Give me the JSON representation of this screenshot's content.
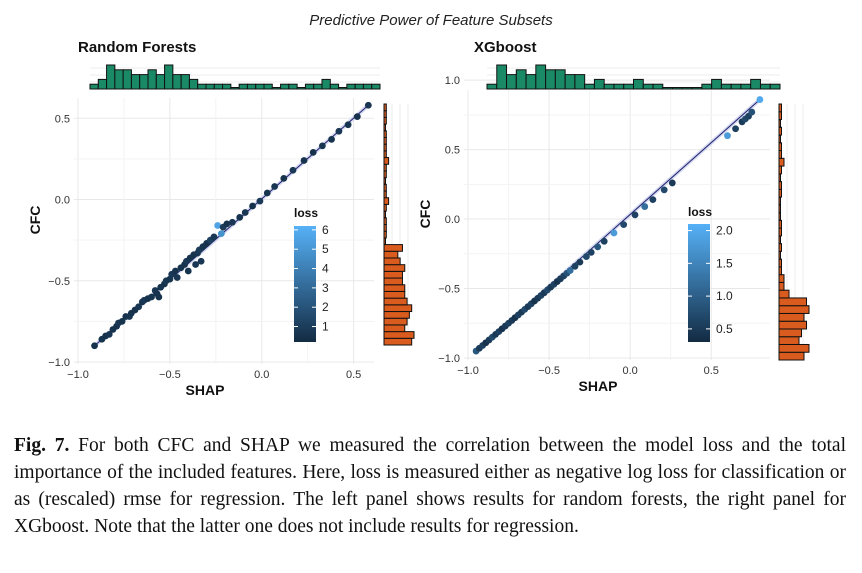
{
  "figure": {
    "title": "Predictive Power of Feature Subsets",
    "colors": {
      "hist_top": "#1a8a66",
      "hist_right": "#d95b1e",
      "point_dark": "#132b43",
      "point_light": "#56b1f7",
      "line": "#1f1f6e"
    }
  },
  "chart_data": [
    {
      "type": "scatter",
      "title": "Random Forests",
      "xlabel": "SHAP",
      "ylabel": "CFC",
      "xlim": [
        -1.0,
        0.6
      ],
      "ylim": [
        -1.0,
        0.6
      ],
      "xticks": [
        "−1.0",
        "−0.5",
        "0.0",
        "0.5"
      ],
      "yticks": [
        "−1.0",
        "−0.5",
        "0.0",
        "0.5"
      ],
      "xtick_values": [
        -1.0,
        -0.5,
        0.0,
        0.5
      ],
      "ytick_values": [
        -1.0,
        -0.5,
        0.0,
        0.5
      ],
      "legend": {
        "title": "loss",
        "ticks": [
          "1",
          "2",
          "3",
          "4",
          "5",
          "6"
        ],
        "tick_values": [
          1,
          2,
          3,
          4,
          5,
          6
        ],
        "range": [
          0.2,
          6.2
        ]
      },
      "points": [
        {
          "x": -0.91,
          "y": -0.9,
          "loss": 0.5
        },
        {
          "x": -0.87,
          "y": -0.86,
          "loss": 0.6
        },
        {
          "x": -0.85,
          "y": -0.84,
          "loss": 0.5
        },
        {
          "x": -0.83,
          "y": -0.83,
          "loss": 0.7
        },
        {
          "x": -0.81,
          "y": -0.8,
          "loss": 0.6
        },
        {
          "x": -0.79,
          "y": -0.78,
          "loss": 0.5
        },
        {
          "x": -0.78,
          "y": -0.76,
          "loss": 0.8
        },
        {
          "x": -0.76,
          "y": -0.75,
          "loss": 0.6
        },
        {
          "x": -0.74,
          "y": -0.72,
          "loss": 0.5
        },
        {
          "x": -0.72,
          "y": -0.72,
          "loss": 0.7
        },
        {
          "x": -0.71,
          "y": -0.7,
          "loss": 0.6
        },
        {
          "x": -0.69,
          "y": -0.68,
          "loss": 0.5
        },
        {
          "x": -0.67,
          "y": -0.66,
          "loss": 0.7
        },
        {
          "x": -0.65,
          "y": -0.63,
          "loss": 0.6
        },
        {
          "x": -0.64,
          "y": -0.62,
          "loss": 0.8
        },
        {
          "x": -0.62,
          "y": -0.61,
          "loss": 0.5
        },
        {
          "x": -0.6,
          "y": -0.6,
          "loss": 0.6
        },
        {
          "x": -0.58,
          "y": -0.56,
          "loss": 0.7
        },
        {
          "x": -0.57,
          "y": -0.58,
          "loss": 0.5
        },
        {
          "x": -0.55,
          "y": -0.54,
          "loss": 0.6
        },
        {
          "x": -0.53,
          "y": -0.52,
          "loss": 0.5
        },
        {
          "x": -0.52,
          "y": -0.5,
          "loss": 0.7
        },
        {
          "x": -0.5,
          "y": -0.49,
          "loss": 0.6
        },
        {
          "x": -0.49,
          "y": -0.46,
          "loss": 0.8
        },
        {
          "x": -0.47,
          "y": -0.44,
          "loss": 0.5
        },
        {
          "x": -0.46,
          "y": -0.48,
          "loss": 0.7
        },
        {
          "x": -0.44,
          "y": -0.42,
          "loss": 0.6
        },
        {
          "x": -0.42,
          "y": -0.4,
          "loss": 0.5
        },
        {
          "x": -0.41,
          "y": -0.38,
          "loss": 0.8
        },
        {
          "x": -0.39,
          "y": -0.36,
          "loss": 0.6
        },
        {
          "x": -0.37,
          "y": -0.34,
          "loss": 0.5
        },
        {
          "x": -0.35,
          "y": -0.33,
          "loss": 0.7
        },
        {
          "x": -0.34,
          "y": -0.31,
          "loss": 0.9
        },
        {
          "x": -0.32,
          "y": -0.29,
          "loss": 0.6
        },
        {
          "x": -0.3,
          "y": -0.27,
          "loss": 0.5
        },
        {
          "x": -0.28,
          "y": -0.25,
          "loss": 1.2
        },
        {
          "x": -0.26,
          "y": -0.23,
          "loss": 0.7
        },
        {
          "x": -0.24,
          "y": -0.16,
          "loss": 5.6
        },
        {
          "x": -0.22,
          "y": -0.21,
          "loss": 4.8
        },
        {
          "x": -0.21,
          "y": -0.17,
          "loss": 0.9
        },
        {
          "x": -0.19,
          "y": -0.15,
          "loss": 0.6
        },
        {
          "x": -0.16,
          "y": -0.14,
          "loss": 0.8
        },
        {
          "x": -0.12,
          "y": -0.11,
          "loss": 0.6
        },
        {
          "x": -0.09,
          "y": -0.08,
          "loss": 0.7
        },
        {
          "x": -0.05,
          "y": -0.04,
          "loss": 0.5
        },
        {
          "x": -0.01,
          "y": -0.01,
          "loss": 0.9
        },
        {
          "x": 0.03,
          "y": 0.04,
          "loss": 0.6
        },
        {
          "x": 0.07,
          "y": 0.08,
          "loss": 0.7
        },
        {
          "x": 0.12,
          "y": 0.13,
          "loss": 0.6
        },
        {
          "x": 0.17,
          "y": 0.18,
          "loss": 0.8
        },
        {
          "x": 0.23,
          "y": 0.24,
          "loss": 0.6
        },
        {
          "x": 0.28,
          "y": 0.29,
          "loss": 0.5
        },
        {
          "x": 0.33,
          "y": 0.33,
          "loss": 0.7
        },
        {
          "x": 0.38,
          "y": 0.37,
          "loss": 0.6
        },
        {
          "x": 0.42,
          "y": 0.42,
          "loss": 0.8
        },
        {
          "x": 0.47,
          "y": 0.46,
          "loss": 0.6
        },
        {
          "x": 0.52,
          "y": 0.51,
          "loss": 0.5
        },
        {
          "x": 0.58,
          "y": 0.58,
          "loss": 0.7
        },
        {
          "x": -0.4,
          "y": -0.44,
          "loss": 0.6
        },
        {
          "x": -0.33,
          "y": -0.38,
          "loss": 0.7
        },
        {
          "x": -0.56,
          "y": -0.6,
          "loss": 0.5
        },
        {
          "x": -0.36,
          "y": -0.4,
          "loss": 0.8
        }
      ],
      "fit_line": [
        [
          -0.91,
          -0.9
        ],
        [
          0.58,
          0.58
        ]
      ],
      "hist_top": [
        1,
        2,
        5,
        4,
        4,
        3,
        3,
        4,
        3,
        5,
        3,
        3,
        2,
        1,
        1,
        1,
        1,
        0,
        1,
        1,
        1,
        1,
        0,
        1,
        1,
        0,
        1,
        1,
        2,
        1,
        0,
        1,
        1,
        1,
        1
      ],
      "hist_right": [
        12,
        13,
        9,
        10,
        11,
        12,
        10,
        9,
        9,
        8,
        8,
        9,
        7,
        6,
        8,
        0,
        1,
        1,
        1,
        0,
        1,
        2,
        1,
        1,
        0,
        1,
        1,
        2,
        1,
        1,
        1,
        1,
        0,
        1,
        1,
        1
      ]
    },
    {
      "type": "scatter",
      "title": "XGboost",
      "xlabel": "SHAP",
      "ylabel": "CFC",
      "xlim": [
        -1.0,
        0.85
      ],
      "ylim": [
        -1.0,
        0.9
      ],
      "xticks": [
        "−1.0",
        "−0.5",
        "0.0",
        "0.5"
      ],
      "yticks": [
        "−1.0",
        "−0.5",
        "0.0",
        "0.5",
        "1.0"
      ],
      "xtick_values": [
        -1.0,
        -0.5,
        0.0,
        0.5
      ],
      "ytick_values": [
        -1.0,
        -0.5,
        0.0,
        0.5,
        1.0
      ],
      "legend": {
        "title": "loss",
        "ticks": [
          "0.5",
          "1.0",
          "1.5",
          "2.0"
        ],
        "tick_values": [
          0.5,
          1.0,
          1.5,
          2.0
        ],
        "range": [
          0.3,
          2.1
        ]
      },
      "points": [
        {
          "x": -0.95,
          "y": -0.95,
          "loss": 0.9
        },
        {
          "x": -0.93,
          "y": -0.93,
          "loss": 0.5
        },
        {
          "x": -0.91,
          "y": -0.91,
          "loss": 0.6
        },
        {
          "x": -0.89,
          "y": -0.89,
          "loss": 0.4
        },
        {
          "x": -0.87,
          "y": -0.87,
          "loss": 0.5
        },
        {
          "x": -0.85,
          "y": -0.85,
          "loss": 0.7
        },
        {
          "x": -0.83,
          "y": -0.83,
          "loss": 0.5
        },
        {
          "x": -0.81,
          "y": -0.81,
          "loss": 0.6
        },
        {
          "x": -0.79,
          "y": -0.79,
          "loss": 0.4
        },
        {
          "x": -0.77,
          "y": -0.77,
          "loss": 0.5
        },
        {
          "x": -0.75,
          "y": -0.75,
          "loss": 0.6
        },
        {
          "x": -0.73,
          "y": -0.73,
          "loss": 0.5
        },
        {
          "x": -0.71,
          "y": -0.71,
          "loss": 0.4
        },
        {
          "x": -0.69,
          "y": -0.69,
          "loss": 0.6
        },
        {
          "x": -0.67,
          "y": -0.67,
          "loss": 0.5
        },
        {
          "x": -0.65,
          "y": -0.65,
          "loss": 0.7
        },
        {
          "x": -0.63,
          "y": -0.63,
          "loss": 0.5
        },
        {
          "x": -0.61,
          "y": -0.61,
          "loss": 0.6
        },
        {
          "x": -0.59,
          "y": -0.59,
          "loss": 0.4
        },
        {
          "x": -0.57,
          "y": -0.57,
          "loss": 0.5
        },
        {
          "x": -0.55,
          "y": -0.55,
          "loss": 0.6
        },
        {
          "x": -0.53,
          "y": -0.53,
          "loss": 0.5
        },
        {
          "x": -0.51,
          "y": -0.51,
          "loss": 0.7
        },
        {
          "x": -0.49,
          "y": -0.49,
          "loss": 0.5
        },
        {
          "x": -0.47,
          "y": -0.47,
          "loss": 0.6
        },
        {
          "x": -0.45,
          "y": -0.45,
          "loss": 0.4
        },
        {
          "x": -0.43,
          "y": -0.43,
          "loss": 0.5
        },
        {
          "x": -0.41,
          "y": -0.41,
          "loss": 0.6
        },
        {
          "x": -0.39,
          "y": -0.39,
          "loss": 0.8
        },
        {
          "x": -0.37,
          "y": -0.37,
          "loss": 1.2
        },
        {
          "x": -0.34,
          "y": -0.34,
          "loss": 0.6
        },
        {
          "x": -0.31,
          "y": -0.31,
          "loss": 0.5
        },
        {
          "x": -0.27,
          "y": -0.27,
          "loss": 0.7
        },
        {
          "x": -0.24,
          "y": -0.24,
          "loss": 0.6
        },
        {
          "x": -0.2,
          "y": -0.2,
          "loss": 0.9
        },
        {
          "x": -0.16,
          "y": -0.16,
          "loss": 0.6
        },
        {
          "x": -0.1,
          "y": -0.1,
          "loss": 1.8
        },
        {
          "x": -0.04,
          "y": -0.04,
          "loss": 0.7
        },
        {
          "x": 0.03,
          "y": 0.03,
          "loss": 0.6
        },
        {
          "x": 0.09,
          "y": 0.09,
          "loss": 1.2
        },
        {
          "x": 0.14,
          "y": 0.14,
          "loss": 0.6
        },
        {
          "x": 0.21,
          "y": 0.21,
          "loss": 0.7
        },
        {
          "x": 0.26,
          "y": 0.26,
          "loss": 0.5
        },
        {
          "x": 0.6,
          "y": 0.6,
          "loss": 1.8
        },
        {
          "x": 0.65,
          "y": 0.65,
          "loss": 0.6
        },
        {
          "x": 0.69,
          "y": 0.7,
          "loss": 0.5
        },
        {
          "x": 0.71,
          "y": 0.72,
          "loss": 0.7
        },
        {
          "x": 0.73,
          "y": 0.74,
          "loss": 0.6
        },
        {
          "x": 0.75,
          "y": 0.77,
          "loss": 0.8
        },
        {
          "x": 0.8,
          "y": 0.86,
          "loss": 2.0
        }
      ],
      "fit_line": [
        [
          -0.96,
          -0.96
        ],
        [
          0.8,
          0.86
        ]
      ],
      "hist_top": [
        1,
        5,
        3,
        4,
        3,
        5,
        4,
        4,
        3,
        3,
        1,
        2,
        1,
        1,
        1,
        2,
        1,
        1,
        0,
        0,
        0,
        0,
        1,
        2,
        1,
        1,
        1,
        2,
        1,
        1
      ],
      "hist_right": [
        10,
        12,
        8,
        9,
        11,
        10,
        12,
        11,
        4,
        2,
        2,
        1,
        1,
        0,
        1,
        0,
        1,
        1,
        0,
        0,
        0,
        1,
        1,
        0,
        1,
        2,
        1,
        1,
        0,
        1,
        0,
        1,
        1
      ]
    }
  ],
  "caption": {
    "label": "Fig. 7.",
    "text": " For both CFC and SHAP we measured the correlation between the model loss and the total importance of the included features. Here, loss is measured either as negative log loss for classification or as (rescaled) rmse for regression. The left panel shows results for random forests, the right panel for XGboost. Note that the latter one does not include results for regression."
  }
}
